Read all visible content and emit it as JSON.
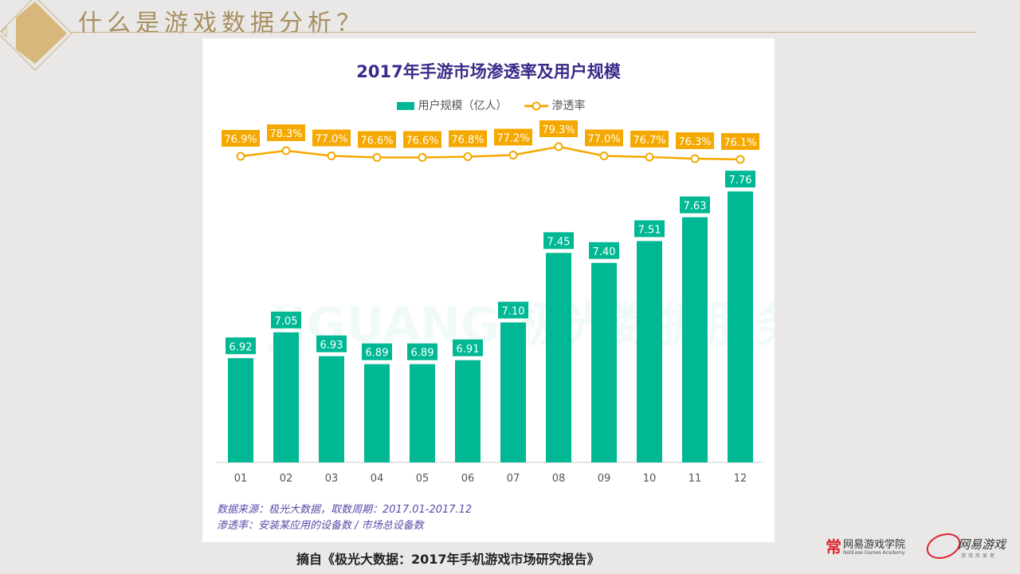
{
  "slide": {
    "title": "什么是游戏数据分析？",
    "source": "摘自《极光大数据：2017年手机游戏市场研究报告》",
    "logos": {
      "academy_cn": "网易游戏学院",
      "academy_en": "NetEase Games Academy",
      "netease_games": "网易游戏",
      "netease_games_sub": "游戏热爱者"
    }
  },
  "colors": {
    "bar": "#00b894",
    "line": "#f5a800",
    "title": "#3b2a8a",
    "accent": "#a88f62"
  },
  "chart_data": {
    "type": "bar",
    "title": "2017年手游市场渗透率及用户规模",
    "watermark": "JIGUANG 极光数据服务",
    "categories": [
      "01",
      "02",
      "03",
      "04",
      "05",
      "06",
      "07",
      "08",
      "09",
      "10",
      "11",
      "12"
    ],
    "series": [
      {
        "name": "用户规模（亿人）",
        "type": "bar",
        "values": [
          6.92,
          7.05,
          6.93,
          6.89,
          6.89,
          6.91,
          7.1,
          7.45,
          7.4,
          7.51,
          7.63,
          7.76
        ],
        "labels": [
          "6.92",
          "7.05",
          "6.93",
          "6.89",
          "6.89",
          "6.91",
          "7.10",
          "7.45",
          "7.40",
          "7.51",
          "7.63",
          "7.76"
        ]
      },
      {
        "name": "渗透率",
        "type": "line",
        "values": [
          76.9,
          78.3,
          77.0,
          76.6,
          76.6,
          76.8,
          77.2,
          79.3,
          77.0,
          76.7,
          76.3,
          76.1
        ],
        "labels": [
          "76.9%",
          "78.3%",
          "77.0%",
          "76.6%",
          "76.6%",
          "76.8%",
          "77.2%",
          "79.3%",
          "77.0%",
          "76.7%",
          "76.3%",
          "76.1%"
        ]
      }
    ],
    "legend_placement": "top",
    "grid": false,
    "notes": [
      "数据来源：极光大数据，取数周期：2017.01-2017.12",
      "渗透率：安装某应用的设备数 / 市场总设备数"
    ]
  }
}
